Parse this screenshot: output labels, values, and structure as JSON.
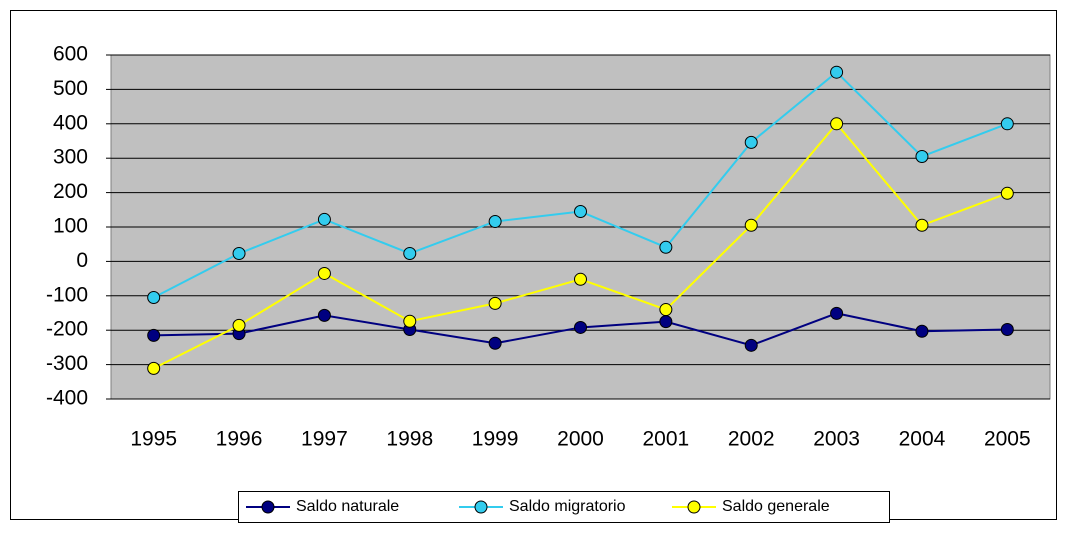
{
  "chart_data": {
    "type": "line",
    "categories": [
      "1995",
      "1996",
      "1997",
      "1998",
      "1999",
      "2000",
      "2001",
      "2002",
      "2003",
      "2004",
      "2005"
    ],
    "series": [
      {
        "name": "Saldo naturale",
        "color": "#000080",
        "values": [
          -215,
          -210,
          -157,
          -198,
          -238,
          -192,
          -175,
          -244,
          -151,
          -203,
          -198
        ]
      },
      {
        "name": "Saldo migratorio",
        "color": "#33ccee",
        "values": [
          -105,
          23,
          122,
          23,
          116,
          145,
          41,
          346,
          550,
          305,
          400
        ]
      },
      {
        "name": "Saldo generale",
        "color": "#ffff00",
        "values": [
          -311,
          -186,
          -35,
          -174,
          -122,
          -52,
          -140,
          105,
          400,
          105,
          198
        ]
      }
    ],
    "ylim": [
      -400,
      600
    ],
    "yticks": [
      -400,
      -300,
      -200,
      -100,
      0,
      100,
      200,
      300,
      400,
      500,
      600
    ],
    "grid": true,
    "legend": "bottom"
  }
}
